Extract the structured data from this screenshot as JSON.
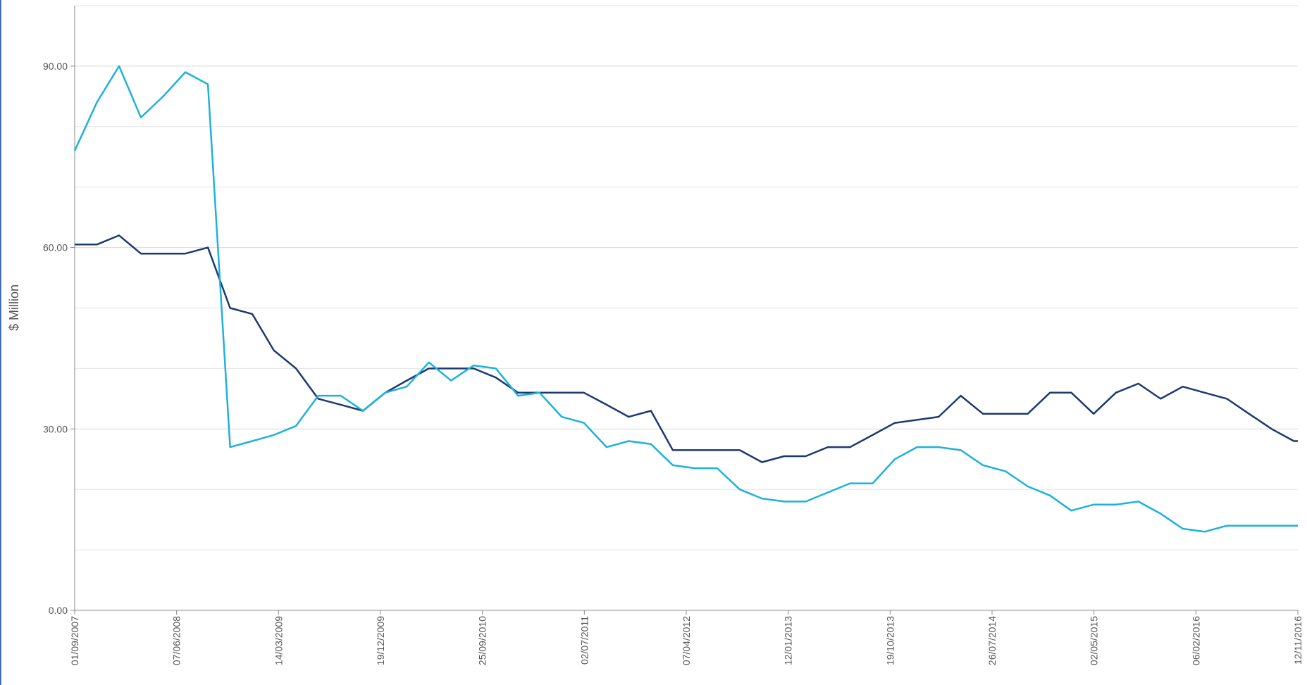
{
  "chart_data": {
    "type": "line",
    "y_label": "$ Million",
    "x": [
      "01/09/2007",
      "01/11/2007",
      "01/01/2008",
      "01/03/2008",
      "01/05/2008",
      "01/07/2008",
      "01/09/2008",
      "01/11/2008",
      "01/01/2009",
      "01/03/2009",
      "01/05/2009",
      "01/07/2009",
      "01/09/2009",
      "01/11/2009",
      "01/01/2010",
      "01/03/2010",
      "01/05/2010",
      "01/07/2010",
      "01/09/2010",
      "01/11/2010",
      "01/01/2011",
      "01/03/2011",
      "01/05/2011",
      "01/07/2011",
      "01/09/2011",
      "01/11/2011",
      "01/01/2012",
      "01/03/2012",
      "01/05/2012",
      "01/07/2012",
      "01/09/2012",
      "01/11/2012",
      "01/01/2013",
      "01/03/2013",
      "01/05/2013",
      "01/07/2013",
      "01/09/2013",
      "01/11/2013",
      "01/01/2014",
      "01/03/2014",
      "01/05/2014",
      "01/07/2014",
      "01/09/2014",
      "01/11/2014",
      "01/01/2015",
      "01/03/2015",
      "01/05/2015",
      "01/07/2015",
      "01/09/2015",
      "01/11/2015",
      "01/01/2016",
      "01/03/2016",
      "01/05/2016",
      "01/07/2016",
      "01/09/2016",
      "01/11/2016",
      "12/11/2016"
    ],
    "series": [
      {
        "color": "#1b3a6f",
        "values": [
          60.5,
          60.5,
          62,
          59,
          59,
          59,
          60,
          50,
          49,
          43,
          40,
          35,
          34,
          33,
          36,
          38,
          40,
          40,
          40,
          38.5,
          36,
          36,
          36,
          36,
          34,
          32,
          33,
          26.5,
          26.5,
          26.5,
          26.5,
          24.5,
          25.5,
          25.5,
          27,
          27,
          29,
          31,
          31.5,
          32,
          35.5,
          32.5,
          32.5,
          32.5,
          36,
          36,
          32.5,
          36,
          37.5,
          35,
          37,
          36,
          35,
          32.5,
          30,
          28,
          28
        ]
      },
      {
        "color": "#1eb1dc",
        "values": [
          76,
          84,
          90,
          81.5,
          85,
          89,
          87,
          27,
          28,
          29,
          30.5,
          35.5,
          35.5,
          33,
          36,
          37,
          41,
          38,
          40.5,
          40,
          35.5,
          36,
          32,
          31,
          27,
          28,
          27.5,
          24,
          23.5,
          23.5,
          20,
          18.5,
          18,
          18,
          19.5,
          21,
          21,
          25,
          27,
          27,
          26.5,
          24,
          23,
          20.5,
          19,
          16.5,
          17.5,
          17.5,
          18,
          16,
          13.5,
          13,
          14,
          14,
          14,
          14,
          14
        ]
      }
    ],
    "xlim": [
      "01/09/2007",
      "12/11/2016"
    ],
    "xticks": [
      "01/09/2007",
      "07/06/2008",
      "14/03/2009",
      "19/12/2009",
      "25/09/2010",
      "02/07/2011",
      "07/04/2012",
      "12/01/2013",
      "19/10/2013",
      "26/07/2014",
      "02/05/2015",
      "06/02/2016",
      "12/11/2016"
    ],
    "ylim": [
      0,
      100
    ],
    "yticks": [
      {
        "value": 0,
        "label": "0.00"
      },
      {
        "value": 30,
        "label": "30.00"
      },
      {
        "value": 60,
        "label": "60.00"
      },
      {
        "value": 90,
        "label": "90.00"
      }
    ],
    "minor_yticks": [
      10,
      20,
      40,
      50,
      70,
      80,
      100
    ],
    "grid": true
  }
}
